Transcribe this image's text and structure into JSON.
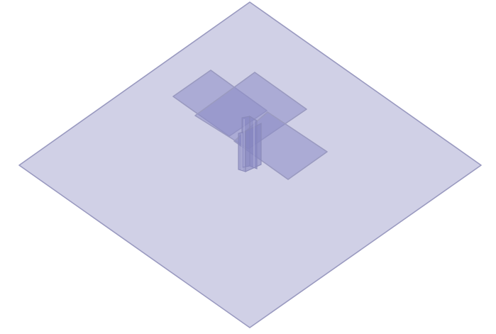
{
  "scene": {
    "background": "#ffffff",
    "base_plate_color": "#d0d0e6",
    "panel_color": "#8c8cc6",
    "edge_color": "#9a9ac0"
  }
}
